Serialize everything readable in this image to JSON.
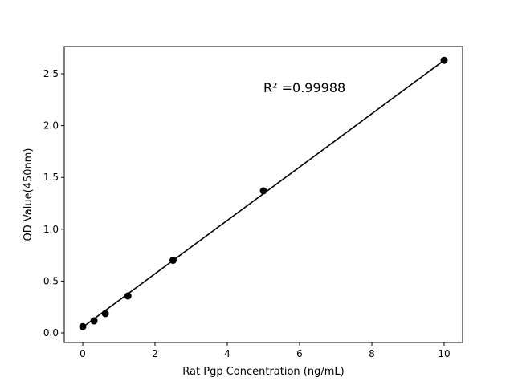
{
  "chart_data": {
    "type": "scatter",
    "title": "",
    "xlabel": "Rat Pgp Concentration (ng/mL)",
    "ylabel": "OD Value(450nm)",
    "xlim": [
      -0.5,
      10.5
    ],
    "ylim": [
      -0.09,
      2.75
    ],
    "xticks": [
      0,
      2,
      4,
      6,
      8,
      10
    ],
    "xtick_labels": [
      "0",
      "2",
      "4",
      "6",
      "8",
      "10"
    ],
    "yticks": [
      0.0,
      0.5,
      1.0,
      1.5,
      2.0,
      2.5
    ],
    "ytick_labels": [
      "0.0",
      "0.5",
      "1.0",
      "1.5",
      "2.0",
      "2.5"
    ],
    "grid": false,
    "points": {
      "x": [
        0,
        0.3125,
        0.625,
        1.25,
        2.5,
        5,
        10
      ],
      "y": [
        0.06,
        0.116,
        0.186,
        0.356,
        0.7,
        1.37,
        2.63
      ]
    },
    "fit_line": {
      "x": [
        0,
        10
      ],
      "y": [
        0.055,
        2.63
      ]
    },
    "annotation": {
      "text": "R² =0.99988",
      "x": 5,
      "y": 2.37
    },
    "color": "#000000"
  }
}
